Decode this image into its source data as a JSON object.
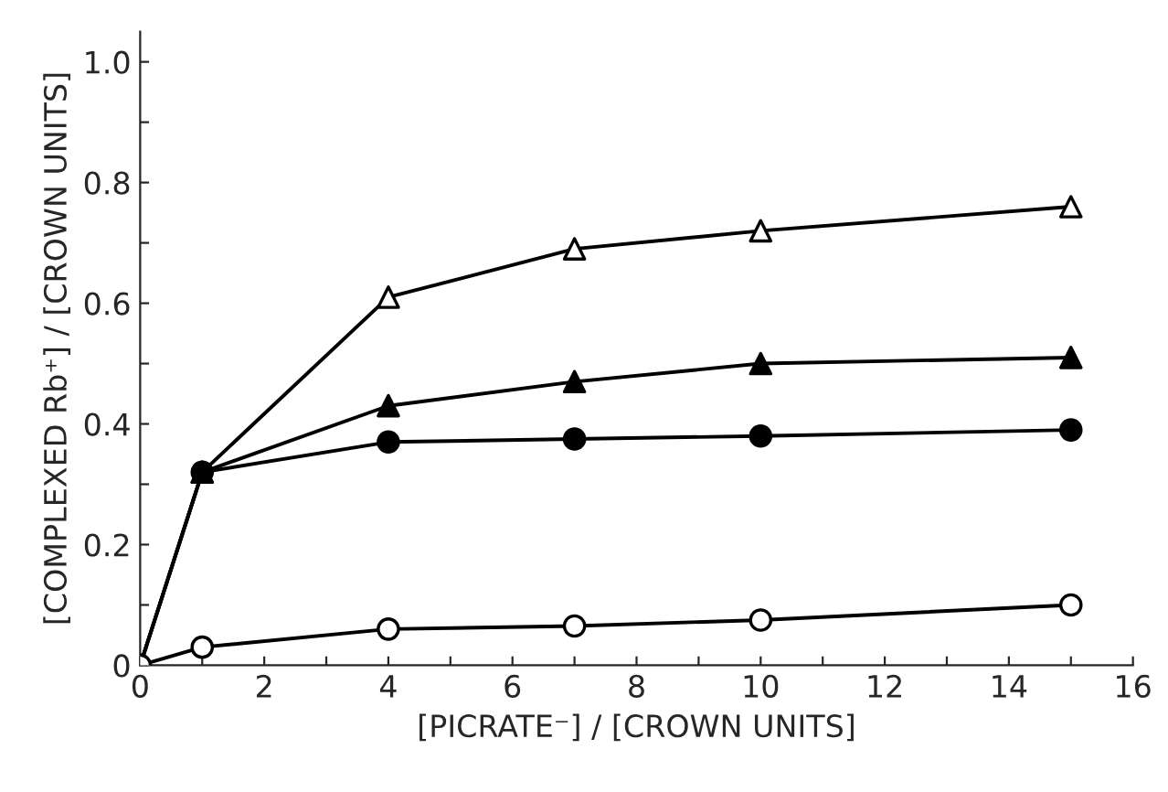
{
  "chart_data": {
    "type": "line",
    "xlabel": "[PICRATE⁻] / [CROWN UNITS]",
    "ylabel": "[COMPLEXED Rb⁺] / [CROWN UNITS]",
    "xlim": [
      0,
      16
    ],
    "ylim": [
      0,
      1.05
    ],
    "xticks": [
      0,
      {
        "value": 1,
        "label": null
      },
      2,
      {
        "value": 3,
        "label": null
      },
      4,
      {
        "value": 5,
        "label": null
      },
      6,
      {
        "value": 7,
        "label": null
      },
      8,
      {
        "value": 9,
        "label": null
      },
      10,
      {
        "value": 11,
        "label": null
      },
      12,
      {
        "value": 13,
        "label": null
      },
      14,
      {
        "value": 15,
        "label": null
      },
      16
    ],
    "yticks": [
      0,
      {
        "value": 0.1,
        "label": null
      },
      0.2,
      {
        "value": 0.3,
        "label": null
      },
      0.4,
      {
        "value": 0.5,
        "label": null
      },
      0.6,
      {
        "value": 0.7,
        "label": null
      },
      0.8,
      {
        "value": 0.9,
        "label": null
      },
      {
        "value": 1,
        "label": "1.0"
      }
    ],
    "grid": false,
    "line_style": "solid",
    "series": [
      {
        "color": "#000000",
        "marker": "triangle",
        "colors": [
          "#ffffff",
          "#ffffff",
          "#ffffff",
          "#ffffff",
          "#ffffff",
          "#ffffff"
        ],
        "x": [
          0,
          1,
          4,
          7,
          10,
          15
        ],
        "values": [
          0,
          0.32,
          0.61,
          0.69,
          0.72,
          0.76
        ]
      },
      {
        "color": "#000000",
        "marker": "triangle",
        "x": [
          0,
          1,
          4,
          7,
          10,
          15
        ],
        "values": [
          0,
          0.32,
          0.43,
          0.47,
          0.5,
          0.51
        ]
      },
      {
        "color": "#000000",
        "marker": "circle",
        "x": [
          0,
          1,
          4,
          7,
          10,
          15
        ],
        "values": [
          0,
          0.32,
          0.37,
          0.375,
          0.38,
          0.39
        ]
      },
      {
        "color": "#000000",
        "marker": "circle",
        "colors": [
          "#ffffff",
          "#ffffff",
          "#ffffff",
          "#ffffff",
          "#ffffff",
          "#ffffff"
        ],
        "x": [
          0,
          1,
          4,
          7,
          10,
          15
        ],
        "values": [
          0,
          0.03,
          0.06,
          0.065,
          0.075,
          0.1
        ]
      }
    ]
  }
}
